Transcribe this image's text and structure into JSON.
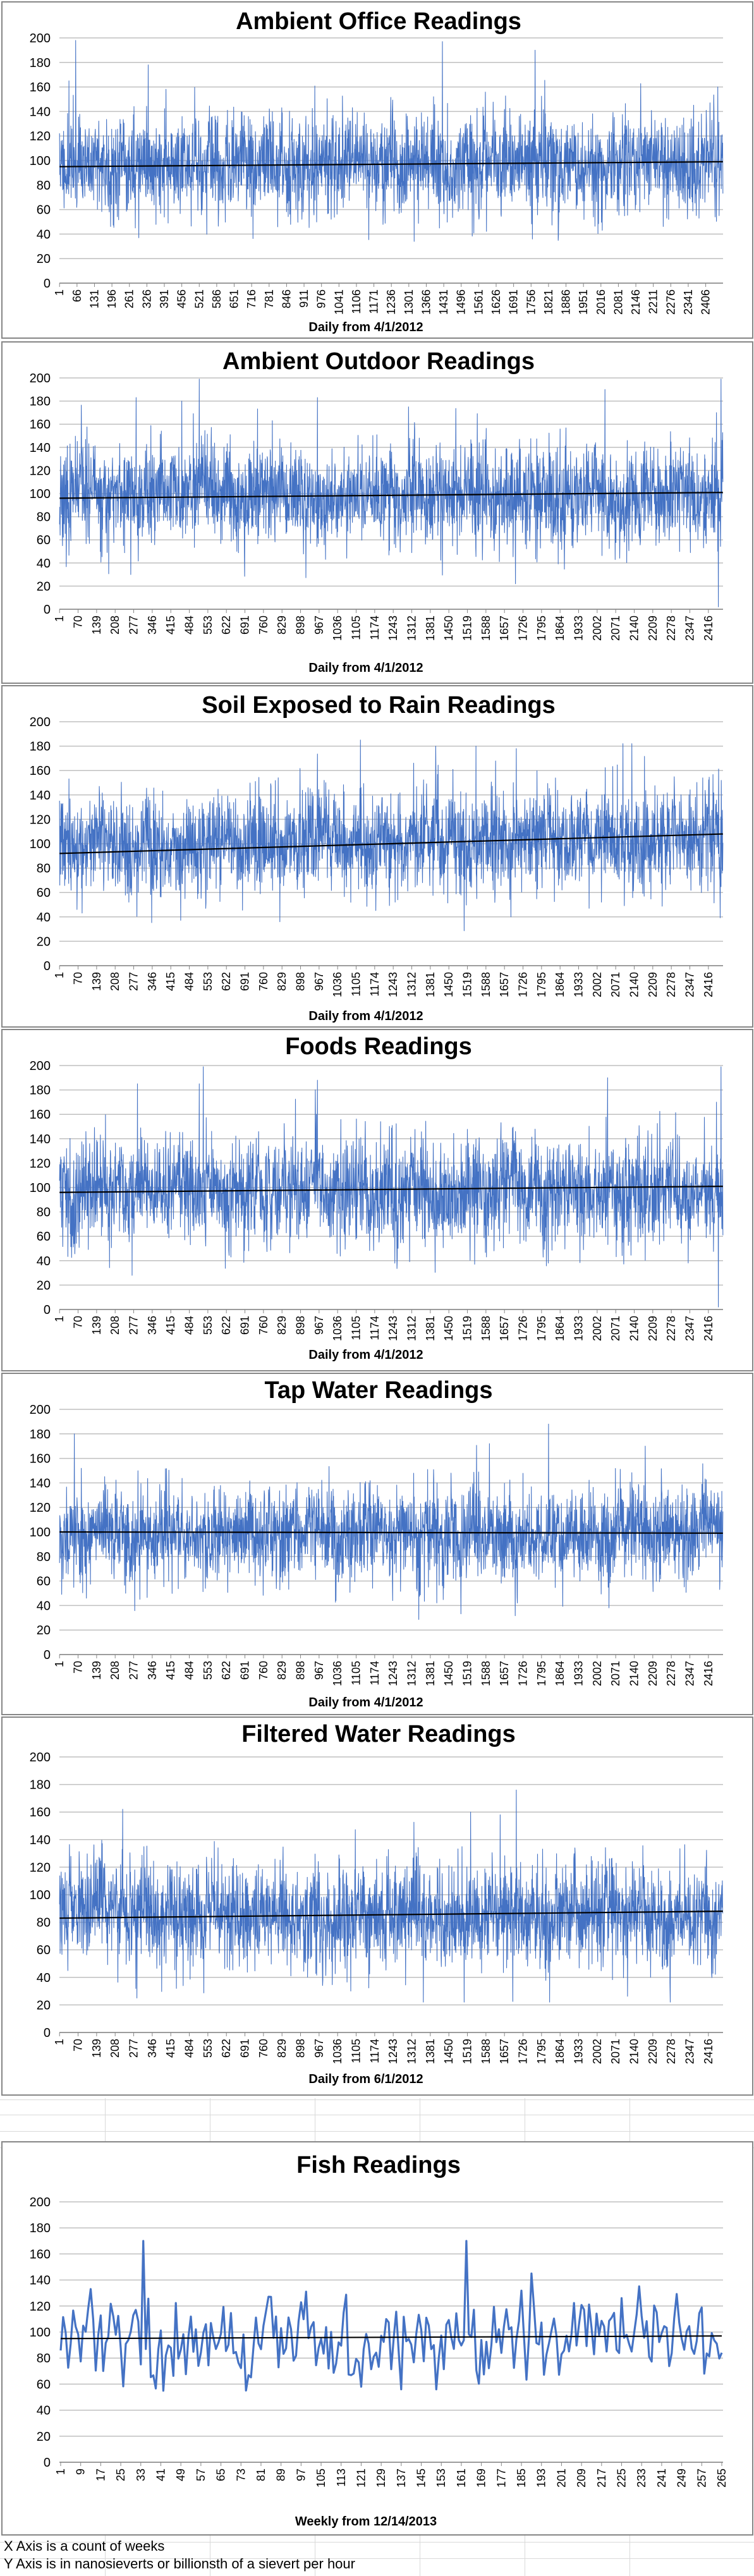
{
  "colors": {
    "series": "#4472c4",
    "trend": "#000000",
    "grid": "#bfbfbf",
    "border": "#868686"
  },
  "charts": [
    {
      "kind": "daily",
      "title": "Ambient Office Readings",
      "xlabel": "Daily from 4/1/2012",
      "ylim": [
        0,
        200
      ],
      "yticks": [
        0,
        20,
        40,
        60,
        80,
        100,
        120,
        140,
        160,
        180,
        200
      ],
      "x_ticks": [
        "1",
        "66",
        "131",
        "196",
        "261",
        "326",
        "391",
        "456",
        "521",
        "586",
        "651",
        "716",
        "781",
        "846",
        "911",
        "976",
        "1041",
        "1106",
        "1171",
        "1236",
        "1301",
        "1366",
        "1431",
        "1496",
        "1561",
        "1626",
        "1691",
        "1756",
        "1821",
        "1886",
        "1951",
        "2016",
        "2081",
        "2146",
        "2211",
        "2276",
        "2341",
        "2406"
      ],
      "n": 2470,
      "mean": 97,
      "spread": 20,
      "trend": [
        95,
        99
      ],
      "seed": 11,
      "spikes": [
        [
          60,
          198
        ],
        [
          1425,
          197
        ],
        [
          1770,
          190
        ],
        [
          35,
          165
        ],
        [
          330,
          178
        ],
        [
          1320,
          34
        ],
        [
          1760,
          36
        ],
        [
          2450,
          160
        ],
        [
          2440,
          54
        ]
      ]
    },
    {
      "kind": "daily",
      "title": "Ambient Outdoor Readings",
      "xlabel": "Daily from 4/1/2012",
      "ylim": [
        0,
        200
      ],
      "yticks": [
        0,
        20,
        40,
        60,
        80,
        100,
        120,
        140,
        160,
        180,
        200
      ],
      "x_ticks": [
        "1",
        "70",
        "139",
        "208",
        "277",
        "346",
        "415",
        "484",
        "553",
        "622",
        "691",
        "760",
        "829",
        "898",
        "967",
        "1036",
        "1105",
        "1174",
        "1243",
        "1312",
        "1381",
        "1450",
        "1519",
        "1588",
        "1657",
        "1726",
        "1795",
        "1864",
        "1933",
        "2002",
        "2071",
        "2140",
        "2209",
        "2278",
        "2347",
        "2416"
      ],
      "n": 2470,
      "mean": 98,
      "spread": 21,
      "trend": [
        96,
        101
      ],
      "seed": 23,
      "spikes": [
        [
          520,
          199
        ],
        [
          455,
          180
        ],
        [
          285,
          183
        ],
        [
          960,
          183
        ],
        [
          2030,
          190
        ],
        [
          2462,
          199
        ],
        [
          2452,
          2
        ],
        [
          2445,
          170
        ],
        [
          265,
          30
        ]
      ]
    },
    {
      "kind": "daily",
      "title": "Soil Exposed to Rain Readings",
      "xlabel": "Daily from 4/1/2012",
      "ylim": [
        0,
        200
      ],
      "yticks": [
        0,
        20,
        40,
        60,
        80,
        100,
        120,
        140,
        160,
        180,
        200
      ],
      "x_ticks": [
        "1",
        "70",
        "139",
        "208",
        "277",
        "346",
        "415",
        "484",
        "553",
        "622",
        "691",
        "760",
        "829",
        "898",
        "967",
        "1036",
        "1105",
        "1174",
        "1243",
        "1312",
        "1381",
        "1450",
        "1519",
        "1588",
        "1657",
        "1726",
        "1795",
        "1864",
        "1933",
        "2002",
        "2071",
        "2140",
        "2209",
        "2278",
        "2347",
        "2416"
      ],
      "n": 2470,
      "mean": 100,
      "spread": 20,
      "trend": [
        92,
        108
      ],
      "seed": 37,
      "spikes": [
        [
          1120,
          185
        ],
        [
          1400,
          180
        ],
        [
          2130,
          182
        ],
        [
          1550,
          180
        ],
        [
          1700,
          178
        ],
        [
          820,
          36
        ],
        [
          1680,
          40
        ]
      ]
    },
    {
      "kind": "daily",
      "title": "Foods Readings",
      "xlabel": "Daily from 4/1/2012",
      "ylim": [
        0,
        200
      ],
      "yticks": [
        0,
        20,
        40,
        60,
        80,
        100,
        120,
        140,
        160,
        180,
        200
      ],
      "x_ticks": [
        "1",
        "70",
        "139",
        "208",
        "277",
        "346",
        "415",
        "484",
        "553",
        "622",
        "691",
        "760",
        "829",
        "898",
        "967",
        "1036",
        "1105",
        "1174",
        "1243",
        "1312",
        "1381",
        "1450",
        "1519",
        "1588",
        "1657",
        "1726",
        "1795",
        "1864",
        "1933",
        "2002",
        "2071",
        "2140",
        "2209",
        "2278",
        "2347",
        "2416"
      ],
      "n": 2470,
      "mean": 98,
      "spread": 21,
      "trend": [
        96,
        101
      ],
      "seed": 41,
      "spikes": [
        [
          535,
          199
        ],
        [
          520,
          185
        ],
        [
          290,
          185
        ],
        [
          960,
          188
        ],
        [
          2040,
          190
        ],
        [
          2462,
          199
        ],
        [
          2452,
          2
        ],
        [
          2445,
          170
        ],
        [
          270,
          28
        ]
      ]
    },
    {
      "kind": "daily",
      "title": "Tap Water Readings",
      "xlabel": "Daily from 4/1/2012",
      "ylim": [
        0,
        200
      ],
      "yticks": [
        0,
        20,
        40,
        60,
        80,
        100,
        120,
        140,
        160,
        180,
        200
      ],
      "x_ticks": [
        "1",
        "70",
        "139",
        "208",
        "277",
        "346",
        "415",
        "484",
        "553",
        "622",
        "691",
        "760",
        "829",
        "898",
        "967",
        "1036",
        "1105",
        "1174",
        "1243",
        "1312",
        "1381",
        "1450",
        "1519",
        "1588",
        "1657",
        "1726",
        "1795",
        "1864",
        "1933",
        "2002",
        "2071",
        "2140",
        "2209",
        "2278",
        "2347",
        "2416"
      ],
      "n": 2470,
      "mean": 99,
      "spread": 19,
      "trend": [
        100,
        99
      ],
      "seed": 53,
      "spikes": [
        [
          55,
          180
        ],
        [
          1820,
          188
        ],
        [
          1600,
          172
        ],
        [
          1240,
          44
        ],
        [
          2180,
          170
        ],
        [
          100,
          46
        ]
      ]
    },
    {
      "kind": "daily",
      "title": "Filtered Water Readings",
      "xlabel": "Daily from 6/1/2012",
      "ylim": [
        0,
        200
      ],
      "yticks": [
        0,
        20,
        40,
        60,
        80,
        100,
        120,
        140,
        160,
        180,
        200
      ],
      "x_ticks": [
        "1",
        "70",
        "139",
        "208",
        "277",
        "346",
        "415",
        "484",
        "553",
        "622",
        "691",
        "760",
        "829",
        "898",
        "967",
        "1036",
        "1105",
        "1174",
        "1243",
        "1312",
        "1381",
        "1450",
        "1519",
        "1588",
        "1657",
        "1726",
        "1795",
        "1864",
        "1933",
        "2002",
        "2071",
        "2140",
        "2209",
        "2278",
        "2347",
        "2416"
      ],
      "n": 2470,
      "mean": 86,
      "spread": 18,
      "trend": [
        83,
        88
      ],
      "seed": 67,
      "spikes": [
        [
          1700,
          176
        ],
        [
          235,
          162
        ],
        [
          1530,
          160
        ],
        [
          1640,
          158
        ],
        [
          460,
          34
        ],
        [
          2200,
          40
        ]
      ]
    },
    {
      "kind": "weekly",
      "title": "Fish Readings",
      "xlabel": "Weekly from 12/14/2013",
      "ylim": [
        0,
        200
      ],
      "yticks": [
        0,
        20,
        40,
        60,
        80,
        100,
        120,
        140,
        160,
        180,
        200
      ],
      "x_ticks": [
        "1",
        "9",
        "17",
        "25",
        "33",
        "41",
        "49",
        "57",
        "65",
        "73",
        "81",
        "89",
        "97",
        "105",
        "113",
        "121",
        "129",
        "137",
        "145",
        "153",
        "161",
        "169",
        "177",
        "185",
        "193",
        "201",
        "209",
        "217",
        "225",
        "233",
        "241",
        "249",
        "257",
        "265"
      ],
      "n": 265,
      "mean": 95,
      "spread": 16,
      "trend": [
        95,
        97
      ],
      "seed": 79,
      "spikes": [
        [
          33,
          170
        ],
        [
          162,
          170
        ],
        [
          188,
          145
        ],
        [
          12,
          133
        ],
        [
          150,
          56
        ],
        [
          136,
          56
        ],
        [
          120,
          58
        ]
      ]
    }
  ],
  "footnotes": [
    "X Axis is a count of weeks",
    "Y Axis is in nanosieverts or billionsth of a sievert per hour"
  ]
}
